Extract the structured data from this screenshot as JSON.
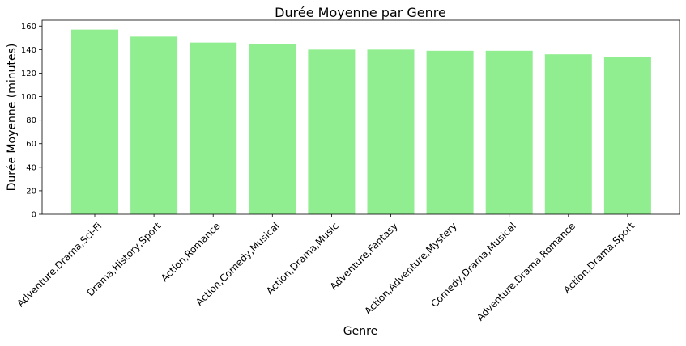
{
  "chart_data": {
    "type": "bar",
    "title": "Durée Moyenne par Genre",
    "xlabel": "Genre",
    "ylabel": "Durée Moyenne (minutes)",
    "categories": [
      "Adventure,Drama,Sci-Fi",
      "Drama,History,Sport",
      "Action,Romance",
      "Action,Comedy,Musical",
      "Action,Drama,Music",
      "Adventure,Fantasy",
      "Action,Adventure,Mystery",
      "Comedy,Drama,Musical",
      "Adventure,Drama,Romance",
      "Action,Drama,Sport"
    ],
    "values": [
      157,
      151,
      146,
      145,
      140,
      140,
      139,
      139,
      136,
      134
    ],
    "ylim": [
      0,
      165
    ],
    "yticks": [
      0,
      20,
      40,
      60,
      80,
      100,
      120,
      140,
      160
    ],
    "grid": false,
    "legend": "none",
    "bar_color": "#90ee90"
  }
}
